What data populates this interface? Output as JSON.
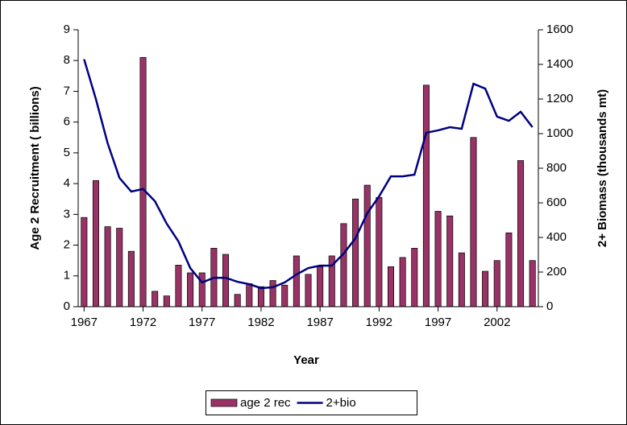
{
  "chart_data": {
    "type": "bar-line",
    "x": [
      1967,
      1968,
      1969,
      1970,
      1971,
      1972,
      1973,
      1974,
      1975,
      1976,
      1977,
      1978,
      1979,
      1980,
      1981,
      1982,
      1983,
      1984,
      1985,
      1986,
      1987,
      1988,
      1989,
      1990,
      1991,
      1992,
      1993,
      1994,
      1995,
      1996,
      1997,
      1998,
      1999,
      2000,
      2001,
      2002,
      2003,
      2004,
      2005
    ],
    "xlim": [
      1966.5,
      2005.5
    ],
    "xticks": [
      1967,
      1972,
      1977,
      1982,
      1987,
      1992,
      1997,
      2002
    ],
    "xlabel": "Year",
    "ylabel": "Age 2 Recruitment ( billions)",
    "y2label": "2+ Biomass (thousands mt)",
    "ylim": [
      0,
      9
    ],
    "yticks": [
      0,
      1,
      2,
      3,
      4,
      5,
      6,
      7,
      8,
      9
    ],
    "y2lim": [
      0,
      1600
    ],
    "y2ticks": [
      0,
      200,
      400,
      600,
      800,
      1000,
      1200,
      1400,
      1600
    ],
    "series": [
      {
        "name": "age 2 rec",
        "kind": "bar",
        "color": "#993366",
        "values": [
          2.9,
          4.1,
          2.6,
          2.55,
          1.8,
          8.1,
          0.5,
          0.35,
          1.35,
          1.1,
          1.1,
          1.9,
          1.7,
          0.4,
          0.75,
          0.65,
          0.85,
          0.7,
          1.65,
          1.05,
          1.3,
          1.65,
          2.7,
          3.5,
          3.95,
          3.55,
          1.3,
          1.6,
          1.9,
          7.2,
          3.1,
          2.95,
          1.75,
          5.5,
          1.15,
          1.5,
          2.4,
          4.75,
          1.5
        ]
      },
      {
        "name": "2+bio",
        "kind": "line",
        "axis": "y2",
        "color": "#000080",
        "values": [
          1430,
          1200,
          944,
          744,
          665,
          680,
          610,
          480,
          377,
          223,
          140,
          167,
          167,
          144,
          130,
          107,
          112,
          140,
          186,
          223,
          237,
          237,
          307,
          395,
          540,
          637,
          753,
          753,
          763,
          1005,
          1019,
          1037,
          1028,
          1288,
          1260,
          1098,
          1074,
          1126,
          1037
        ]
      }
    ]
  }
}
